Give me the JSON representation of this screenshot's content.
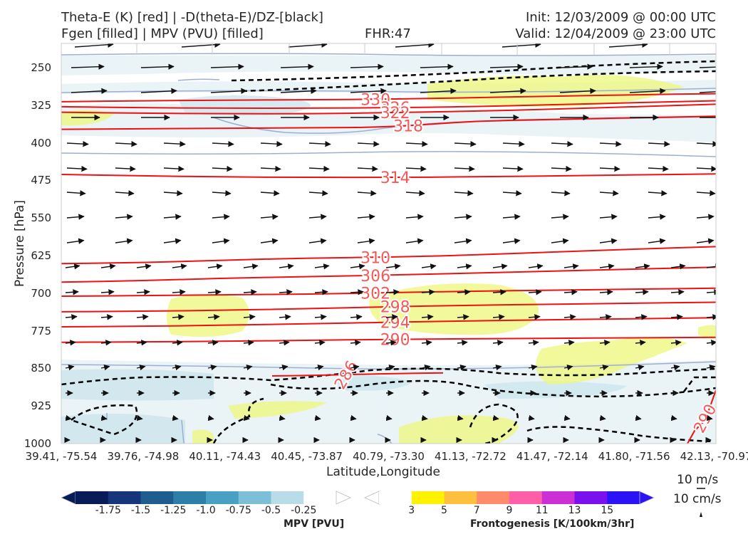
{
  "header": {
    "title_left_1": "Theta-E (K) [red] | -D(theta-E)/DZ-[black]",
    "title_left_2": "Fgen [filled] | MPV (PVU) [filled]",
    "fhr": "FHR:47",
    "init": "Init: 12/03/2009 @ 00:00 UTC",
    "valid": "Valid: 12/04/2009 @ 23:00 UTC"
  },
  "chart_data": {
    "type": "cross-section",
    "xlabel": "Latitude,Longitude",
    "ylabel": "Pressure [hPa]",
    "y_ticks": [
      "250",
      "325",
      "400",
      "475",
      "550",
      "625",
      "700",
      "775",
      "850",
      "925",
      "1000"
    ],
    "x_ticks": [
      "39.41, -75.54",
      "39.76, -74.98",
      "40.11, -74.43",
      "40.45, -73.87",
      "40.79, -73.30",
      "41.13, -72.72",
      "41.47, -72.14",
      "41.80, -71.56",
      "42.13, -70.97"
    ],
    "ylim": [
      1000,
      200
    ],
    "theta_e_contours": [
      {
        "value": "330",
        "pressure": [
          318,
          316,
          315,
          314,
          313,
          310,
          307,
          304,
          302
        ]
      },
      {
        "value": "326",
        "pressure": [
          328,
          330,
          331,
          331,
          330,
          328,
          324,
          320,
          316
        ]
      },
      {
        "value": "322",
        "pressure": [
          339,
          341,
          342,
          342,
          340,
          337,
          333,
          328,
          323
        ]
      },
      {
        "value": "318",
        "pressure": [
          373,
          372,
          371,
          370,
          369,
          357,
          353,
          350,
          347
        ]
      },
      {
        "value": "314",
        "pressure": [
          463,
          466,
          468,
          469,
          469,
          468,
          466,
          464,
          462
        ]
      },
      {
        "value": "310",
        "pressure": [
          641,
          639,
          634,
          630,
          628,
          624,
          618,
          612,
          607
        ]
      },
      {
        "value": "306",
        "pressure": [
          678,
          675,
          670,
          667,
          664,
          660,
          656,
          652,
          648
        ]
      },
      {
        "value": "302",
        "pressure": [
          706,
          705,
          703,
          702,
          699,
          696,
          694,
          692,
          690
        ]
      },
      {
        "value": "298",
        "pressure": [
          737,
          736,
          734,
          731,
          727,
          724,
          722,
          720,
          718
        ]
      },
      {
        "value": "294",
        "pressure": [
          767,
          766,
          764,
          761,
          758,
          755,
          753,
          751,
          749
        ]
      },
      {
        "value": "290",
        "pressure": [
          798,
          797,
          796,
          794,
          792,
          791,
          790,
          789,
          788
        ]
      },
      {
        "value": "286",
        "pressure": [
          865,
          864,
          862,
          860,
          859
        ]
      }
    ],
    "mpv_colorbar": {
      "label": "MPV [PVU]",
      "ticks": [
        "-1.75",
        "-1.5",
        "-1.25",
        "-1.0",
        "-0.75",
        "-0.5",
        "-0.25"
      ],
      "colors": [
        "#081d58",
        "#16357a",
        "#1f5d8f",
        "#2e7fa8",
        "#48a0c2",
        "#7dbfd6",
        "#b9dde8",
        "#ffffff"
      ]
    },
    "fgen_colorbar": {
      "label": "Frontogenesis [K/100km/3hr]",
      "ticks": [
        "3",
        "5",
        "7",
        "9",
        "11",
        "13",
        "15"
      ],
      "colors": [
        "#ffffff",
        "#fff200",
        "#ffc040",
        "#ff8b6a",
        "#ff5fa8",
        "#cc2fd6",
        "#7a10ee",
        "#2a14f5"
      ]
    },
    "reference_vectors": [
      "10 m/s",
      "10 cm/s"
    ]
  }
}
